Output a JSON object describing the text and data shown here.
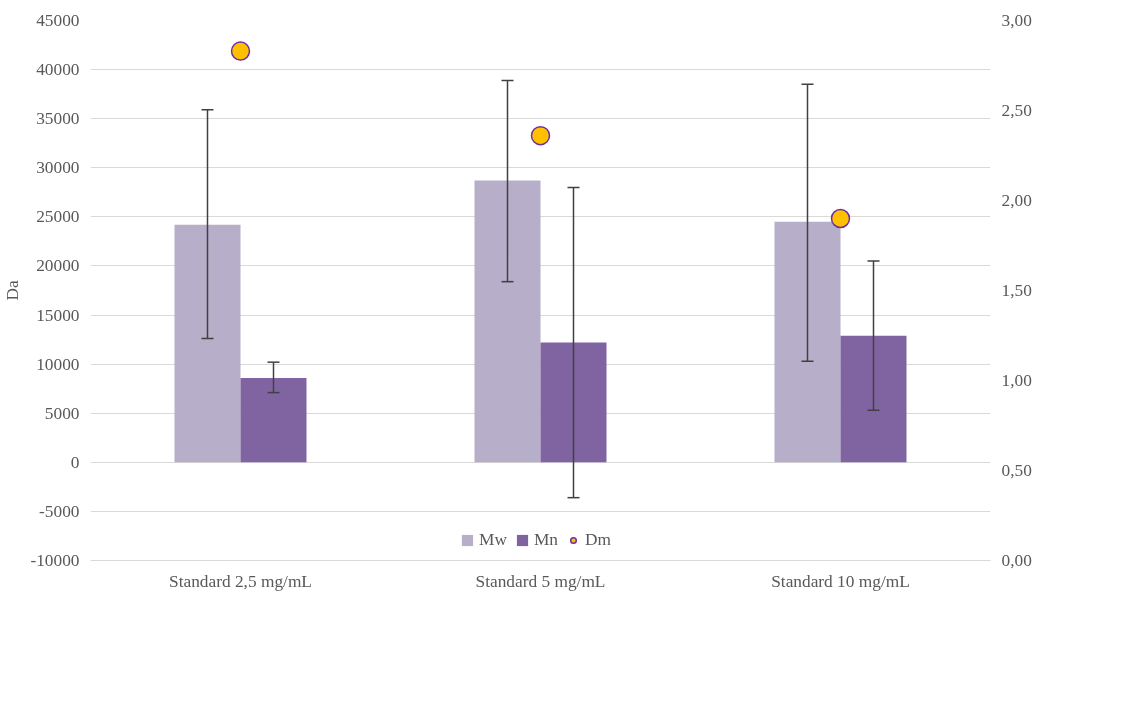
{
  "chart_data": {
    "type": "bar",
    "ylabel": "Da",
    "categories": [
      "Standard 2,5 mg/mL",
      "Standard 5 mg/mL",
      "Standard 10 mg/mL"
    ],
    "ylim": [
      -10000,
      45000
    ],
    "yticks": [
      -10000,
      -5000,
      0,
      5000,
      10000,
      15000,
      20000,
      25000,
      30000,
      35000,
      40000,
      45000
    ],
    "y2lim": [
      0,
      3
    ],
    "y2ticks": [
      {
        "value": 0,
        "label": "0,00"
      },
      {
        "value": 0.5,
        "label": "0,50"
      },
      {
        "value": 1,
        "label": "1,00"
      },
      {
        "value": 1.5,
        "label": "1,50"
      },
      {
        "value": 2,
        "label": "2,00"
      },
      {
        "value": 2.5,
        "label": "2,50"
      },
      {
        "value": 3,
        "label": "3,00"
      }
    ],
    "grid": "y",
    "legend": "bottom",
    "series": [
      {
        "name": "Mw",
        "color": "#b7aec9",
        "values": [
          24200,
          28700,
          24500
        ],
        "errors": [
          [
            12600,
            35900
          ],
          [
            18400,
            38900
          ],
          [
            10300,
            38500
          ]
        ]
      },
      {
        "name": "Mn",
        "color": "#8064a2",
        "values": [
          8600,
          12200,
          12900
        ],
        "errors": [
          [
            7100,
            10200
          ],
          [
            -3600,
            28000
          ],
          [
            5300,
            20500
          ]
        ]
      },
      {
        "name": "Dm",
        "type": "scatter",
        "axis": "y2",
        "marker": "circle",
        "color": "#ffc000",
        "x": [
          "Standard 2,5 mg/mL",
          "Standard 5 mg/mL",
          "Standard 10 mg/mL"
        ],
        "values": [
          2.83,
          2.36,
          1.9
        ]
      }
    ]
  }
}
